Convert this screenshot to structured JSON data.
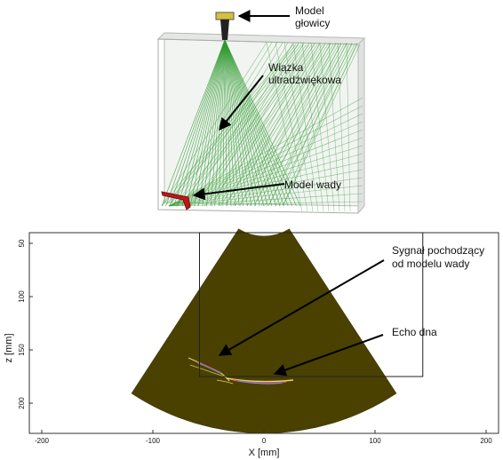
{
  "top_panel": {
    "labels": {
      "probe": [
        "Model",
        "głowicy"
      ],
      "beam": [
        "Wiązka",
        "ultradźwiękowa"
      ],
      "flaw": "Model wady"
    }
  },
  "bottom_panel": {
    "labels": {
      "signal": [
        "Sygnał pochodzący",
        "od modelu wady"
      ],
      "echo": "Echo dna"
    },
    "chart_data": {
      "type": "other",
      "xlabel": "X [mm]",
      "ylabel": "z [mm]",
      "x_ticks": [
        -200,
        -100,
        0,
        100,
        200
      ],
      "y_ticks": [
        50,
        100,
        150,
        200
      ],
      "xlim": [
        -210,
        210
      ],
      "ylim": [
        40,
        225
      ],
      "fan": {
        "apex": [
          0,
          0
        ],
        "angle_half_deg": 32,
        "r_min": 43,
        "r_max": 225,
        "color": "#4a4100"
      },
      "gate_box": {
        "x": [
          -58,
          143
        ],
        "z": [
          40,
          175
        ]
      },
      "bottom_echo": {
        "z": 172,
        "x_range": [
          -20,
          30
        ]
      }
    }
  },
  "colors": {
    "beam": "#2e9a2e",
    "probe": "#d7c13a",
    "flaw": "#c0161c",
    "fan": "#4a4100"
  }
}
